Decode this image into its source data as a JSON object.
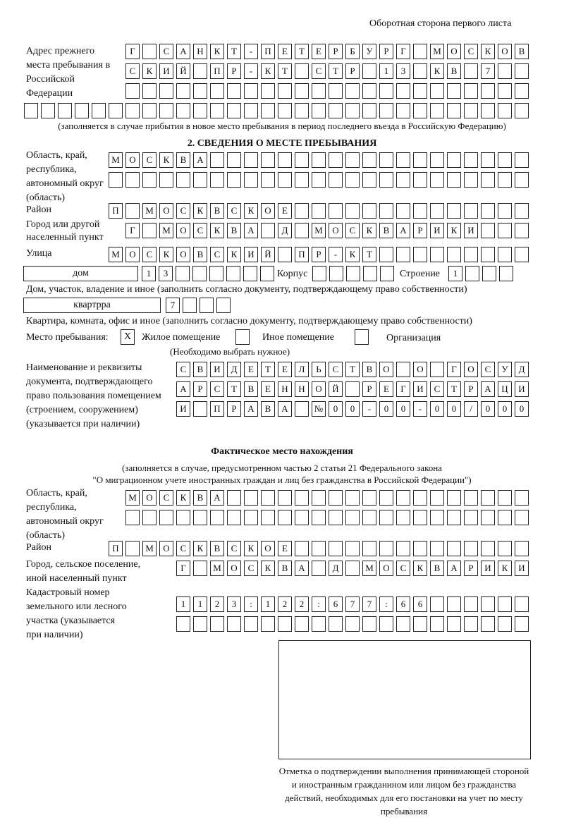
{
  "header": "Оборотная сторона первого листа",
  "prev_address": {
    "label": "Адрес прежнего места пребывания в Российской Федерации",
    "rows": [
      [
        "Г",
        "",
        "С",
        "А",
        "Н",
        "К",
        "Т",
        "-",
        "П",
        "Е",
        "Т",
        "Е",
        "Р",
        "Б",
        "У",
        "Р",
        "Г",
        "",
        "М",
        "О",
        "С",
        "К",
        "О",
        "В"
      ],
      [
        "С",
        "К",
        "И",
        "Й",
        "",
        "П",
        "Р",
        "-",
        "К",
        "Т",
        "",
        "С",
        "Т",
        "Р",
        "",
        "1",
        "3",
        "",
        "К",
        "В",
        "",
        "7",
        "",
        ""
      ],
      [
        "",
        "",
        "",
        "",
        "",
        "",
        "",
        "",
        "",
        "",
        "",
        "",
        "",
        "",
        "",
        "",
        "",
        "",
        "",
        "",
        "",
        "",
        "",
        ""
      ],
      [
        "",
        "",
        "",
        "",
        "",
        "",
        "",
        "",
        "",
        "",
        "",
        "",
        "",
        "",
        "",
        "",
        "",
        "",
        "",
        "",
        "",
        "",
        "",
        "",
        "",
        "",
        "",
        "",
        "",
        ""
      ]
    ],
    "note": "(заполняется в случае прибытия в новое место пребывания в период последнего въезда в Российскую Федерацию)"
  },
  "section2": {
    "title": "2. СВЕДЕНИЯ О МЕСТЕ ПРЕБЫВАНИЯ",
    "oblast_label": "Область, край, республика, автономный округ (область)",
    "oblast_rows": [
      [
        "М",
        "О",
        "С",
        "К",
        "В",
        "А",
        "",
        "",
        "",
        "",
        "",
        "",
        "",
        "",
        "",
        "",
        "",
        "",
        "",
        "",
        "",
        "",
        "",
        "",
        ""
      ],
      [
        "",
        "",
        "",
        "",
        "",
        "",
        "",
        "",
        "",
        "",
        "",
        "",
        "",
        "",
        "",
        "",
        "",
        "",
        "",
        "",
        "",
        "",
        "",
        "",
        ""
      ]
    ],
    "rayon_label": "Район",
    "rayon": [
      "П",
      "",
      "М",
      "О",
      "С",
      "К",
      "В",
      "С",
      "К",
      "О",
      "Е",
      "",
      "",
      "",
      "",
      "",
      "",
      "",
      "",
      "",
      "",
      "",
      "",
      "",
      ""
    ],
    "city_label": "Город или другой населенный пункт",
    "city": [
      "Г",
      "",
      "М",
      "О",
      "С",
      "К",
      "В",
      "А",
      "",
      "Д",
      "",
      "М",
      "О",
      "С",
      "К",
      "В",
      "А",
      "Р",
      "И",
      "К",
      "И",
      "",
      "",
      ""
    ],
    "street_label": "Улица",
    "street": [
      "М",
      "О",
      "С",
      "К",
      "О",
      "В",
      "С",
      "К",
      "И",
      "Й",
      "",
      "П",
      "Р",
      "-",
      "К",
      "Т",
      "",
      "",
      "",
      "",
      "",
      "",
      "",
      "",
      ""
    ],
    "house_type": "дом",
    "house": [
      "1",
      "3",
      "",
      "",
      "",
      "",
      "",
      ""
    ],
    "korpus_label": "Корпус",
    "korpus": [
      "",
      "",
      "",
      "",
      ""
    ],
    "stroenie_label": "Строение",
    "stroenie": [
      "1",
      "",
      "",
      ""
    ],
    "house_note": "Дом, участок, владение и иное (заполнить согласно документу, подтверждающему право собственности)",
    "flat_type": "квартрра",
    "flat": [
      "7",
      "",
      "",
      ""
    ],
    "flat_note": "Квартира, комната, офис и иное (заполнить согласно документу, подтверждающему право собственности)",
    "place_label": "Место пребывания:",
    "place_options": [
      {
        "label": "Жилое помещение",
        "mark": "Х"
      },
      {
        "label": "Иное помещение",
        "mark": ""
      },
      {
        "label": "Организация",
        "mark": ""
      }
    ],
    "place_note": "(Необходимо выбрать нужное)",
    "doc_label": "Наименование и реквизиты документа, подтверждающего право пользования помещением (строением, сооружением) (указывается при наличии)",
    "doc_rows": [
      [
        "С",
        "В",
        "И",
        "Д",
        "Е",
        "Т",
        "Е",
        "Л",
        "Ь",
        "С",
        "Т",
        "В",
        "О",
        "",
        "О",
        "",
        "Г",
        "О",
        "С",
        "У",
        "Д"
      ],
      [
        "А",
        "Р",
        "С",
        "Т",
        "В",
        "Е",
        "Н",
        "Н",
        "О",
        "Й",
        "",
        "Р",
        "Е",
        "Г",
        "И",
        "С",
        "Т",
        "Р",
        "А",
        "Ц",
        "И"
      ],
      [
        "И",
        "",
        "П",
        "Р",
        "А",
        "В",
        "А",
        "",
        "№",
        "0",
        "0",
        "-",
        "0",
        "0",
        "-",
        "0",
        "0",
        "/",
        "0",
        "0",
        "0"
      ]
    ]
  },
  "actual": {
    "title": "Фактическое место нахождения",
    "note1": "(заполняется в случае, предусмотренном частью 2 статьи 21 Федерального закона",
    "note2": "\"О миграционном учете иностранных граждан и лиц без гражданства в Российской Федерации\")",
    "oblast_label": "Область, край, республика, автономный округ (область)",
    "oblast_rows": [
      [
        "М",
        "О",
        "С",
        "К",
        "В",
        "А",
        "",
        "",
        "",
        "",
        "",
        "",
        "",
        "",
        "",
        "",
        "",
        "",
        "",
        "",
        "",
        "",
        "",
        ""
      ],
      [
        "",
        "",
        "",
        "",
        "",
        "",
        "",
        "",
        "",
        "",
        "",
        "",
        "",
        "",
        "",
        "",
        "",
        "",
        "",
        "",
        "",
        "",
        "",
        ""
      ]
    ],
    "rayon_label": "Район",
    "rayon": [
      "П",
      "",
      "М",
      "О",
      "С",
      "К",
      "В",
      "С",
      "К",
      "О",
      "Е",
      "",
      "",
      "",
      "",
      "",
      "",
      "",
      "",
      "",
      "",
      "",
      "",
      "",
      ""
    ],
    "city_label": "Город, сельское поселение, иной населенный пункт",
    "city": [
      "Г",
      "",
      "М",
      "О",
      "С",
      "К",
      "В",
      "А",
      "",
      "Д",
      "",
      "М",
      "О",
      "С",
      "К",
      "В",
      "А",
      "Р",
      "И",
      "К",
      "И"
    ],
    "cadastr_label": "Кадастровый номер земельного или лесного участка (указывается при наличии)",
    "cadastr_rows": [
      [
        "1",
        "1",
        "2",
        "3",
        ":",
        "1",
        "2",
        "2",
        ":",
        "6",
        "7",
        "7",
        ":",
        "6",
        "6",
        "",
        "",
        "",
        "",
        "",
        ""
      ],
      [
        "",
        "",
        "",
        "",
        "",
        "",
        "",
        "",
        "",
        "",
        "",
        "",
        "",
        "",
        "",
        "",
        "",
        "",
        "",
        "",
        ""
      ]
    ]
  },
  "stamp_caption": "Отметка о подтверждении выполнения принимающей стороной и иностранным гражданином или лицом без гражданства действий, необходимых для его постановки на учет по месту пребывания"
}
